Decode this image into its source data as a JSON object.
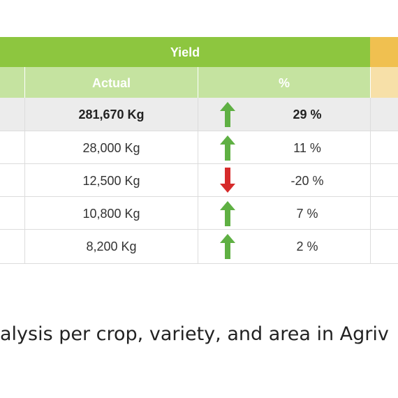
{
  "header": {
    "group_label": "Yield",
    "col_actual": "Actual",
    "col_percent": "%"
  },
  "rows": [
    {
      "actual": "281,670 Kg",
      "trend": "up",
      "percent": "29 %",
      "is_total": true
    },
    {
      "actual": "28,000 Kg",
      "trend": "up",
      "percent": "11 %",
      "is_total": false
    },
    {
      "actual": "12,500 Kg",
      "trend": "down",
      "percent": "-20 %",
      "is_total": false
    },
    {
      "actual": "10,800 Kg",
      "trend": "up",
      "percent": "7 %",
      "is_total": false
    },
    {
      "actual": "8,200 Kg",
      "trend": "up",
      "percent": "2 %",
      "is_total": false
    }
  ],
  "colors": {
    "header_green": "#8dc63f",
    "subheader_green": "#c5e3a0",
    "header_orange": "#f0c050",
    "subheader_orange": "#f7e0a8",
    "arrow_up": "#5fb043",
    "arrow_down": "#d62b2b",
    "total_row": "#ececec"
  },
  "caption": "alysis per crop, variety, and area in Agriv"
}
